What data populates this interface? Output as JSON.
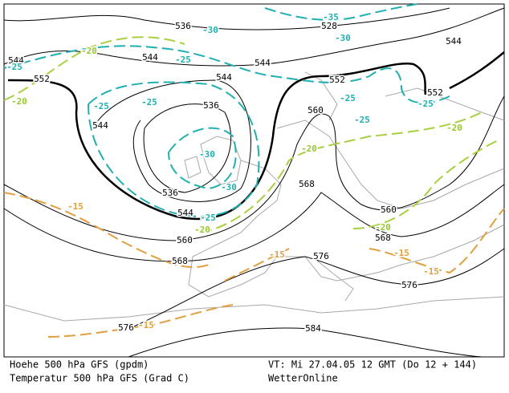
{
  "footer": {
    "left_line1": "Hoehe 500 hPa GFS (gpdm)",
    "left_line2": "Temperatur 500 hPa GFS (Grad C)",
    "right_line1": "VT: Mi 27.04.05 12 GMT (Do 12 + 144)",
    "right_line2": "WetterOnline"
  },
  "height_labels": [
    536,
    528,
    544,
    544,
    552,
    544,
    544,
    544,
    552,
    552,
    536,
    560,
    544,
    536,
    568,
    560,
    544,
    560,
    568,
    568,
    576,
    576,
    576,
    584
  ],
  "temperature_labels": [
    -35,
    -30,
    -30,
    -25,
    -25,
    -25,
    -25,
    -25,
    -25,
    -25,
    -30,
    -30,
    -25,
    -20,
    -20,
    -20,
    -20,
    -20,
    -20,
    -15,
    -15,
    -15,
    -15,
    -15
  ]
}
